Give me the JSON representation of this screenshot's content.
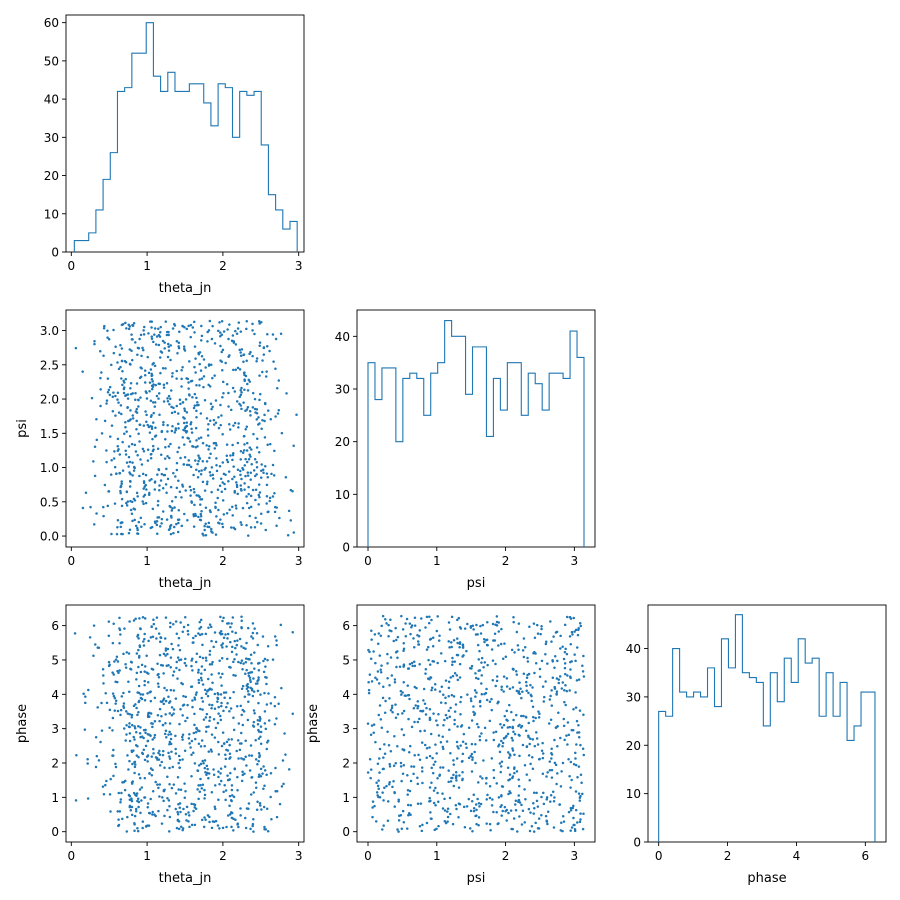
{
  "chart_data": [
    {
      "panel": "theta_jn-hist",
      "type": "histogram",
      "xlabel": "theta_jn",
      "ylabel": "",
      "xlim": [
        -0.07,
        3.07
      ],
      "ylim": [
        0,
        62
      ],
      "xticks": [
        0,
        1,
        2,
        3
      ],
      "yticks": [
        0,
        10,
        20,
        30,
        40,
        50,
        60
      ],
      "bin_edges_range": [
        0.04,
        2.98
      ],
      "counts": [
        3,
        3,
        5,
        11,
        19,
        26,
        42,
        43,
        52,
        52,
        60,
        46,
        42,
        47,
        42,
        42,
        44,
        44,
        39,
        33,
        44,
        43,
        30,
        42,
        41,
        42,
        28,
        15,
        11,
        6,
        8
      ],
      "color": "#1f77b4"
    },
    {
      "panel": "psi-vs-theta_jn",
      "type": "scatter",
      "xlabel": "theta_jn",
      "ylabel": "psi",
      "xlim": [
        -0.07,
        3.07
      ],
      "ylim": [
        -0.16,
        3.3
      ],
      "xticks": [
        0,
        1,
        2,
        3
      ],
      "yticks": [
        0.0,
        0.5,
        1.0,
        1.5,
        2.0,
        2.5,
        3.0
      ],
      "n_points": 1000,
      "points_note": "uniform psi in [0, 3.14]; theta_jn concentrated between 0.5 and 2.7",
      "color": "#1f77b4"
    },
    {
      "panel": "psi-hist",
      "type": "histogram",
      "xlabel": "psi",
      "ylabel": "",
      "xlim": [
        -0.16,
        3.3
      ],
      "ylim": [
        0,
        45
      ],
      "xticks": [
        0,
        1,
        2,
        3
      ],
      "yticks": [
        0,
        10,
        20,
        30,
        40
      ],
      "bin_edges_range": [
        0.0,
        3.14
      ],
      "counts": [
        35,
        28,
        34,
        34,
        20,
        32,
        33,
        32,
        25,
        33,
        35,
        43,
        40,
        40,
        29,
        38,
        38,
        21,
        32,
        26,
        35,
        35,
        25,
        33,
        31,
        26,
        33,
        33,
        32,
        41,
        36
      ],
      "color": "#1f77b4"
    },
    {
      "panel": "phase-vs-theta_jn",
      "type": "scatter",
      "xlabel": "theta_jn",
      "ylabel": "phase",
      "xlim": [
        -0.07,
        3.07
      ],
      "ylim": [
        -0.3,
        6.6
      ],
      "xticks": [
        0,
        1,
        2,
        3
      ],
      "yticks": [
        0,
        1,
        2,
        3,
        4,
        5,
        6
      ],
      "n_points": 1000,
      "points_note": "uniform phase in [0, 6.28]; theta_jn concentrated between 0.5 and 2.7",
      "color": "#1f77b4"
    },
    {
      "panel": "phase-vs-psi",
      "type": "scatter",
      "xlabel": "psi",
      "ylabel": "phase",
      "xlim": [
        -0.16,
        3.3
      ],
      "ylim": [
        -0.3,
        6.6
      ],
      "xticks": [
        0,
        1,
        2,
        3
      ],
      "yticks": [
        0,
        1,
        2,
        3,
        4,
        5,
        6
      ],
      "n_points": 1000,
      "points_note": "uniform phase in [0, 6.28] and psi in [0, 3.14]",
      "color": "#1f77b4"
    },
    {
      "panel": "phase-hist",
      "type": "histogram",
      "xlabel": "phase",
      "ylabel": "",
      "xlim": [
        -0.31,
        6.6
      ],
      "ylim": [
        0,
        49
      ],
      "xticks": [
        0,
        2,
        4,
        6
      ],
      "yticks": [
        0,
        10,
        20,
        30,
        40
      ],
      "bin_edges_range": [
        0.0,
        6.28
      ],
      "counts": [
        27,
        26,
        40,
        31,
        30,
        31,
        30,
        36,
        28,
        42,
        36,
        47,
        35,
        34,
        33,
        24,
        35,
        29,
        38,
        33,
        42,
        37,
        38,
        26,
        35,
        26,
        33,
        21,
        24,
        31,
        31
      ],
      "color": "#1f77b4"
    }
  ]
}
